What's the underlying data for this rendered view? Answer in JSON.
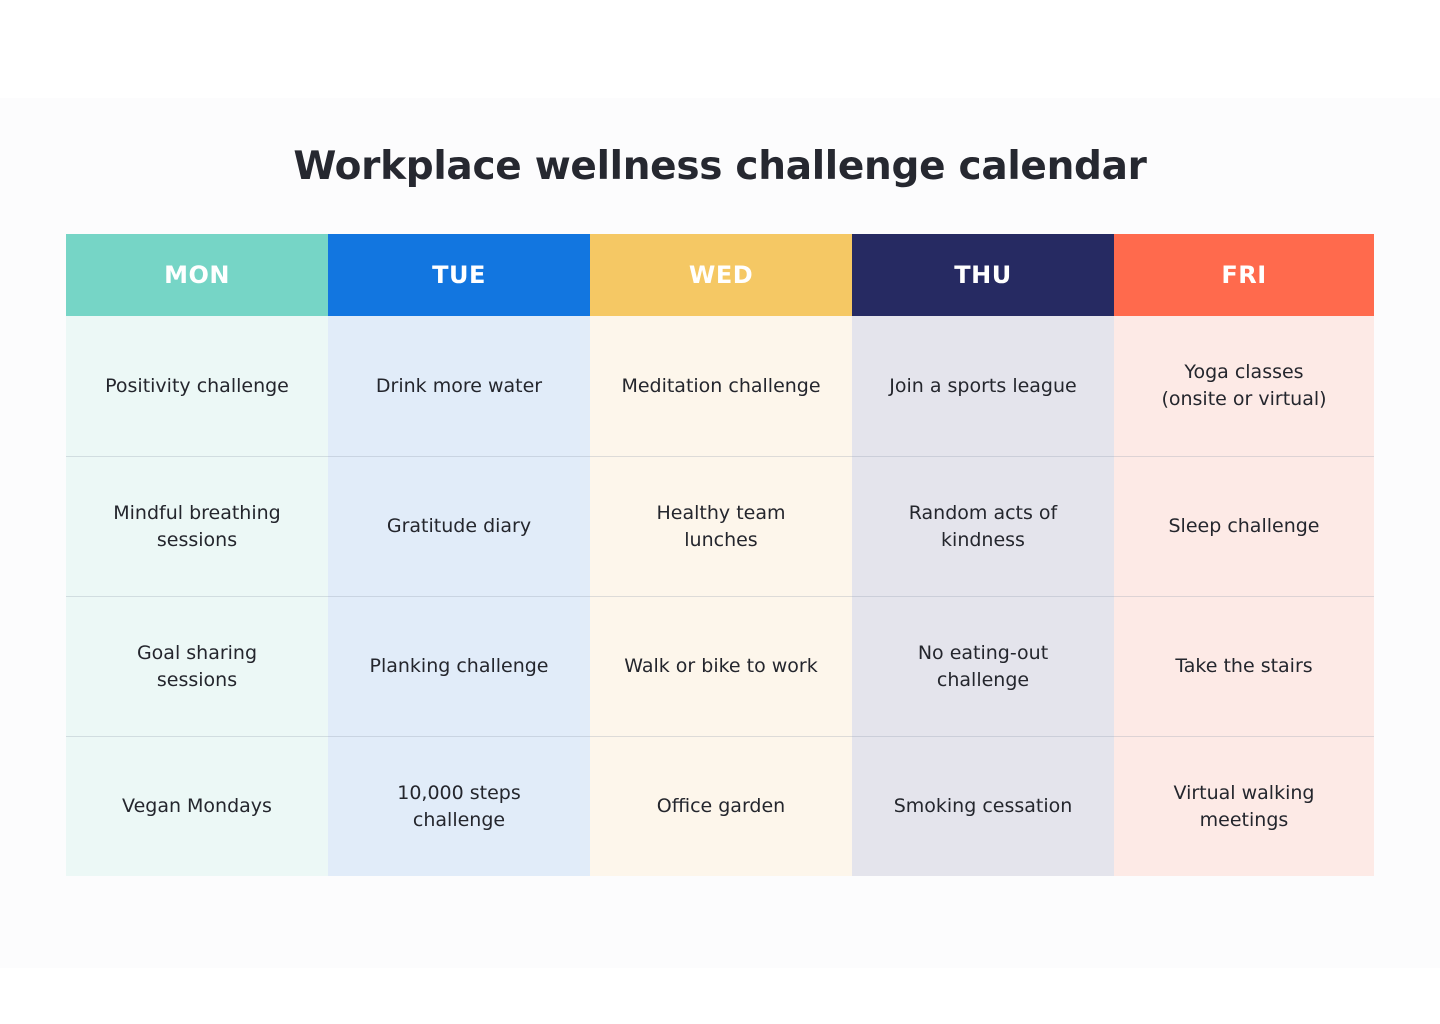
{
  "title": "Workplace wellness challenge calendar",
  "colors": {
    "mon_header": "#76d5c6",
    "tue_header": "#1276e0",
    "wed_header": "#f5c864",
    "thu_header": "#262a62",
    "fri_header": "#ff6a4d",
    "mon_body": "#ecf8f6",
    "tue_body": "#e1ecf9",
    "wed_body": "#fdf6eb",
    "thu_body": "#e4e4ec",
    "fri_body": "#fdeae6"
  },
  "days": [
    {
      "label": "MON",
      "cells": [
        "Positivity challenge",
        "Mindful breathing\nsessions",
        "Goal sharing\nsessions",
        "Vegan Mondays"
      ]
    },
    {
      "label": "TUE",
      "cells": [
        "Drink more water",
        "Gratitude diary",
        "Planking challenge",
        "10,000 steps\nchallenge"
      ]
    },
    {
      "label": "WED",
      "cells": [
        "Meditation challenge",
        "Healthy team lunches",
        "Walk or bike to work",
        "Office garden"
      ]
    },
    {
      "label": "THU",
      "cells": [
        "Join a sports league",
        "Random acts of\nkindness",
        "No eating-out\nchallenge",
        "Smoking cessation"
      ]
    },
    {
      "label": "FRI",
      "cells": [
        "Yoga classes\n(onsite or virtual)",
        "Sleep challenge",
        "Take the stairs",
        "Virtual walking\nmeetings"
      ]
    }
  ]
}
